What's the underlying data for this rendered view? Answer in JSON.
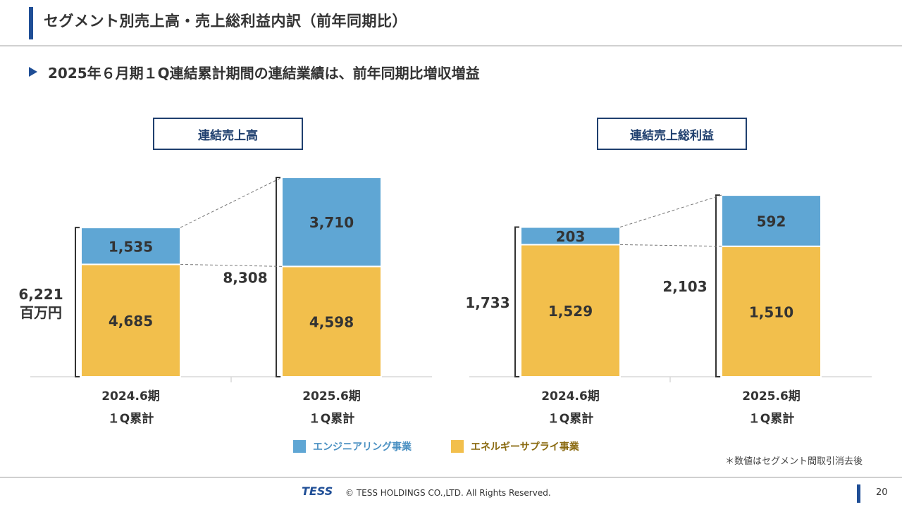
{
  "header": {
    "title": "セグメント別売上高・売上総利益内訳（前年同期比）",
    "subtitle": "2025年６月期１Q連結累計期間の連結業績は、前年同期比増収増益"
  },
  "colors": {
    "engineering": "#5fa6d4",
    "energy": "#f2bf4c",
    "accent": "#1f4e96"
  },
  "chart_data": [
    {
      "type": "bar",
      "stacked": true,
      "title": "連結売上高",
      "categories": [
        "2024.6期|１Q累計",
        "2025.6期|１Q累計"
      ],
      "series": [
        {
          "name": "エネルギーサプライ事業",
          "values": [
            4685,
            4598
          ],
          "labels": [
            "4,685",
            "4,598"
          ]
        },
        {
          "name": "エンジニアリング事業",
          "values": [
            1535,
            3710
          ],
          "labels": [
            "1,535",
            "3,710"
          ]
        }
      ],
      "totals": [
        "6,221",
        "8,308"
      ],
      "unit_label": "百万円"
    },
    {
      "type": "bar",
      "stacked": true,
      "title": "連結売上総利益",
      "categories": [
        "2024.6期|１Q累計",
        "2025.6期|１Q累計"
      ],
      "series": [
        {
          "name": "エネルギーサプライ事業",
          "values": [
            1529,
            1510
          ],
          "labels": [
            "1,529",
            "1,510"
          ]
        },
        {
          "name": "エンジニアリング事業",
          "values": [
            203,
            592
          ],
          "labels": [
            "203",
            "592"
          ]
        }
      ],
      "totals": [
        "1,733",
        "2,103"
      ],
      "unit_label": ""
    }
  ],
  "legend": {
    "engineering": "エンジニアリング事業",
    "energy": "エネルギーサプライ事業"
  },
  "note": "＊数値はセグメント間取引消去後",
  "footer": {
    "logo": "TESS",
    "copyright": "© TESS HOLDINGS CO.,LTD. All Rights Reserved.",
    "page": "20"
  }
}
